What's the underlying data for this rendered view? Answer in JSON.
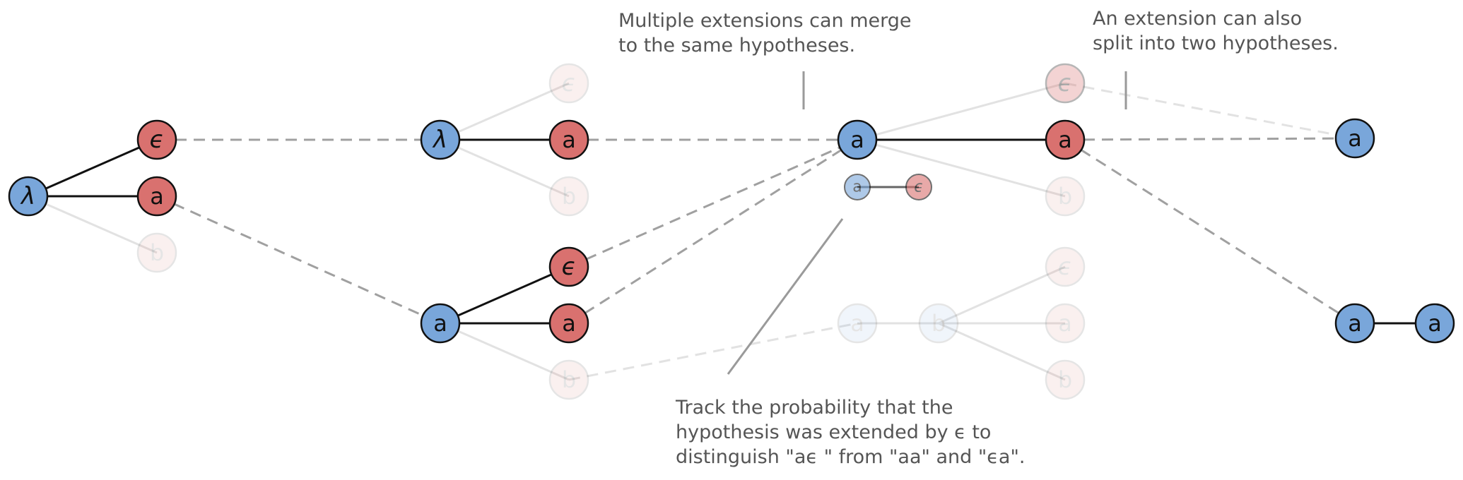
{
  "colors": {
    "blue": "#79a6da",
    "red": "#d9716f",
    "node_stroke": "#111111",
    "solid_edge": "#111111",
    "faded_edge": "#e2e2e2",
    "dashed_edge": "#a0a0a0",
    "pointer": "#9a9a9a",
    "annotation_text": "#555555"
  },
  "symbols": {
    "lambda": "λ",
    "epsilon": "ϵ",
    "a": "a",
    "b": "b"
  },
  "annotations": {
    "merge": {
      "line1": "Multiple extensions can merge",
      "line2": "to the same hypotheses."
    },
    "split": {
      "line1": "An extension can also",
      "line2": "split into two hypotheses."
    },
    "track": {
      "line1": "Track the probability that the",
      "line2": "hypothesis was extended by ϵ to",
      "line3": "distinguish \"aϵ \" from \"aa\" and \"ϵa\"."
    }
  }
}
